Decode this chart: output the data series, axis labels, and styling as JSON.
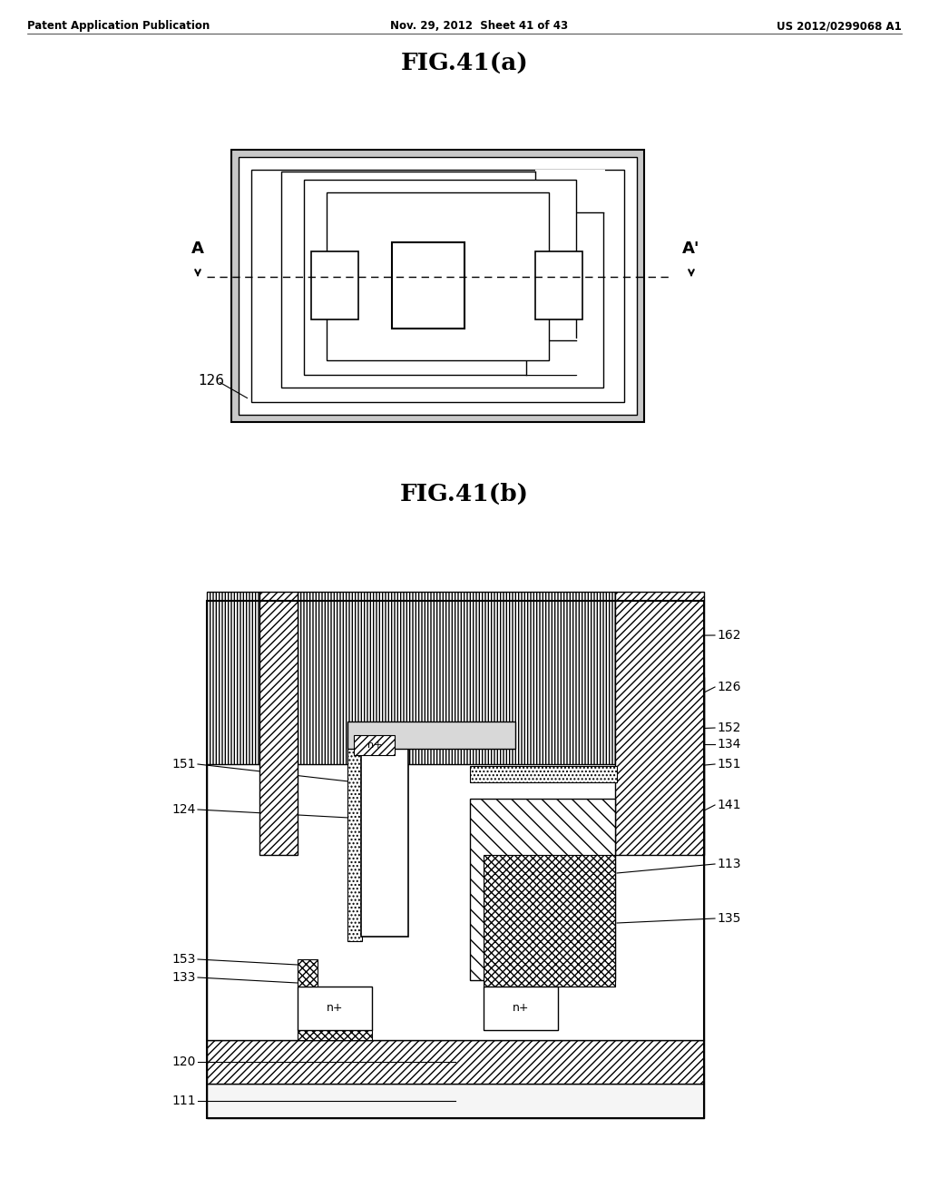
{
  "bg_color": "#ffffff",
  "header_left": "Patent Application Publication",
  "header_mid": "Nov. 29, 2012  Sheet 41 of 43",
  "header_right": "US 2012/0299068 A1",
  "fig_a_title": "FIG.41(a)",
  "fig_b_title": "FIG.41(b)"
}
